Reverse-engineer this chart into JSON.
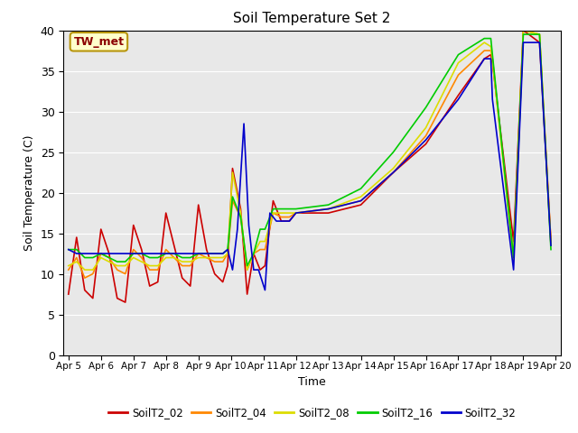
{
  "title": "Soil Temperature Set 2",
  "xlabel": "Time",
  "ylabel": "Soil Temperature (C)",
  "ylim": [
    0,
    40
  ],
  "bg_color": "#e8e8e8",
  "annotation_text": "TW_met",
  "annotation_color": "#8b0000",
  "annotation_bg": "#ffffcc",
  "annotation_border": "#b8960c",
  "series": {
    "SoilT2_02": {
      "color": "#cc0000",
      "x": [
        5.0,
        5.25,
        5.5,
        5.75,
        6.0,
        6.25,
        6.5,
        6.75,
        7.0,
        7.25,
        7.5,
        7.75,
        8.0,
        8.25,
        8.5,
        8.75,
        9.0,
        9.25,
        9.5,
        9.75,
        9.9,
        10.05,
        10.3,
        10.5,
        10.7,
        10.9,
        11.05,
        11.3,
        11.55,
        11.8,
        12.0,
        13.0,
        14.0,
        15.0,
        16.0,
        17.0,
        17.8,
        18.0,
        18.05,
        18.7,
        19.0,
        19.5,
        19.85
      ],
      "y": [
        7.5,
        14.5,
        8.0,
        7.0,
        15.5,
        12.5,
        7.0,
        6.5,
        16.0,
        13.0,
        8.5,
        9.0,
        17.5,
        13.5,
        9.5,
        8.5,
        18.5,
        13.0,
        10.0,
        9.0,
        11.0,
        23.0,
        18.0,
        7.5,
        12.5,
        10.5,
        11.0,
        19.0,
        16.5,
        16.5,
        17.5,
        17.5,
        18.5,
        22.5,
        26.0,
        32.0,
        36.5,
        37.0,
        36.0,
        14.0,
        40.0,
        38.5,
        14.0
      ]
    },
    "SoilT2_04": {
      "color": "#ff8800",
      "x": [
        5.0,
        5.25,
        5.5,
        5.75,
        6.0,
        6.25,
        6.5,
        6.75,
        7.0,
        7.25,
        7.5,
        7.75,
        8.0,
        8.25,
        8.5,
        8.75,
        9.0,
        9.25,
        9.5,
        9.75,
        9.9,
        10.05,
        10.3,
        10.5,
        10.7,
        10.9,
        11.05,
        11.3,
        11.55,
        11.8,
        12.0,
        13.0,
        14.0,
        15.0,
        16.0,
        17.0,
        17.8,
        18.0,
        18.05,
        18.7,
        19.0,
        19.5,
        19.85
      ],
      "y": [
        10.5,
        12.0,
        9.5,
        10.0,
        12.5,
        12.0,
        10.5,
        10.0,
        13.0,
        12.0,
        10.5,
        10.5,
        13.0,
        12.0,
        11.0,
        11.0,
        12.5,
        12.0,
        11.5,
        11.5,
        12.5,
        19.0,
        17.0,
        10.5,
        12.5,
        13.0,
        13.0,
        17.5,
        17.0,
        17.0,
        17.5,
        18.0,
        19.0,
        22.5,
        27.0,
        34.5,
        37.5,
        37.5,
        36.5,
        12.0,
        40.0,
        39.5,
        14.0
      ]
    },
    "SoilT2_08": {
      "color": "#dddd00",
      "x": [
        5.0,
        5.25,
        5.5,
        5.75,
        6.0,
        6.25,
        6.5,
        6.75,
        7.0,
        7.25,
        7.5,
        7.75,
        8.0,
        8.25,
        8.5,
        8.75,
        9.0,
        9.25,
        9.5,
        9.75,
        9.9,
        10.05,
        10.3,
        10.5,
        10.7,
        10.9,
        11.05,
        11.3,
        11.55,
        11.8,
        12.0,
        13.0,
        14.0,
        15.0,
        16.0,
        17.0,
        17.8,
        18.0,
        18.05,
        18.7,
        19.0,
        19.5,
        19.85
      ],
      "y": [
        11.0,
        11.5,
        10.5,
        10.5,
        12.0,
        11.5,
        11.0,
        11.0,
        12.0,
        11.5,
        11.0,
        11.0,
        12.0,
        12.0,
        11.5,
        11.5,
        12.0,
        12.0,
        12.0,
        12.0,
        12.5,
        22.5,
        17.5,
        10.5,
        12.5,
        14.0,
        14.0,
        17.5,
        17.5,
        17.5,
        17.5,
        18.0,
        19.5,
        23.0,
        28.0,
        36.0,
        38.5,
        38.0,
        36.5,
        11.5,
        40.0,
        39.5,
        13.5
      ]
    },
    "SoilT2_16": {
      "color": "#00cc00",
      "x": [
        5.0,
        5.25,
        5.5,
        5.75,
        6.0,
        6.25,
        6.5,
        6.75,
        7.0,
        7.25,
        7.5,
        7.75,
        8.0,
        8.25,
        8.5,
        8.75,
        9.0,
        9.25,
        9.5,
        9.75,
        9.9,
        10.05,
        10.3,
        10.5,
        10.7,
        10.9,
        11.05,
        11.3,
        11.55,
        11.8,
        12.0,
        13.0,
        14.0,
        15.0,
        16.0,
        17.0,
        17.8,
        18.0,
        18.05,
        18.7,
        19.0,
        19.5,
        19.85
      ],
      "y": [
        13.0,
        13.0,
        12.0,
        12.0,
        12.5,
        12.0,
        11.5,
        11.5,
        12.5,
        12.5,
        12.0,
        12.0,
        12.5,
        12.5,
        12.0,
        12.0,
        12.5,
        12.5,
        12.5,
        12.5,
        13.0,
        19.5,
        17.0,
        11.0,
        12.5,
        15.5,
        15.5,
        18.0,
        18.0,
        18.0,
        18.0,
        18.5,
        20.5,
        25.0,
        30.5,
        37.0,
        39.0,
        39.0,
        37.0,
        12.0,
        39.5,
        39.5,
        13.0
      ]
    },
    "SoilT2_32": {
      "color": "#0000cc",
      "x": [
        5.0,
        5.25,
        5.5,
        5.75,
        6.0,
        6.25,
        6.5,
        6.75,
        7.0,
        7.25,
        7.5,
        7.75,
        8.0,
        8.25,
        8.5,
        8.75,
        9.0,
        9.25,
        9.5,
        9.75,
        9.9,
        10.05,
        10.2,
        10.4,
        10.55,
        10.7,
        10.85,
        11.05,
        11.2,
        11.4,
        11.6,
        11.8,
        12.0,
        13.0,
        14.0,
        15.0,
        16.0,
        17.0,
        17.8,
        18.0,
        18.05,
        18.7,
        19.0,
        19.5,
        19.85
      ],
      "y": [
        13.0,
        12.5,
        12.5,
        12.5,
        12.5,
        12.5,
        12.5,
        12.5,
        12.5,
        12.5,
        12.5,
        12.5,
        12.5,
        12.5,
        12.5,
        12.5,
        12.5,
        12.5,
        12.5,
        12.5,
        13.0,
        10.5,
        15.5,
        28.5,
        16.0,
        10.5,
        10.5,
        8.0,
        17.5,
        16.5,
        16.5,
        16.5,
        17.5,
        18.0,
        19.0,
        22.5,
        26.5,
        31.5,
        36.5,
        36.5,
        31.5,
        10.5,
        38.5,
        38.5,
        13.5
      ]
    }
  },
  "xtick_dates": [
    "Apr 5",
    "Apr 6",
    "Apr 7",
    "Apr 8",
    "Apr 9",
    "Apr 10",
    "Apr 11",
    "Apr 12",
    "Apr 13",
    "Apr 14",
    "Apr 15",
    "Apr 16",
    "Apr 17",
    "Apr 18",
    "Apr 19",
    "Apr 20"
  ],
  "xtick_positions": [
    5,
    6,
    7,
    8,
    9,
    10,
    11,
    12,
    13,
    14,
    15,
    16,
    17,
    18,
    19,
    20
  ],
  "xlim": [
    4.85,
    20.15
  ],
  "yticks": [
    0,
    5,
    10,
    15,
    20,
    25,
    30,
    35,
    40
  ],
  "legend_order": [
    "SoilT2_02",
    "SoilT2_04",
    "SoilT2_08",
    "SoilT2_16",
    "SoilT2_32"
  ]
}
